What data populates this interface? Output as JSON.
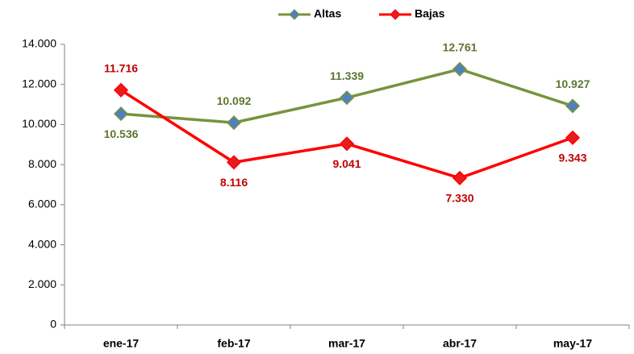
{
  "chart_data": {
    "type": "line",
    "categories": [
      "ene-17",
      "feb-17",
      "mar-17",
      "abr-17",
      "may-17"
    ],
    "series": [
      {
        "name": "Altas",
        "color": "#77933c",
        "marker_color": "#4f81bd",
        "label_color": "#5f7530",
        "values": [
          10536,
          10092,
          11339,
          12761,
          10927
        ],
        "value_labels": [
          "10.536",
          "10.092",
          "11.339",
          "12.761",
          "10.927"
        ]
      },
      {
        "name": "Bajas",
        "color": "#ff0000",
        "marker_color": "#e81c1c",
        "label_color": "#c00000",
        "values": [
          11716,
          8116,
          9041,
          7330,
          9343
        ],
        "value_labels": [
          "11.716",
          "8.116",
          "9.041",
          "7.330",
          "9.343"
        ]
      }
    ],
    "ylim": [
      0,
      14000
    ],
    "yticks": [
      0,
      {
        "value": 2000,
        "label": "2.000"
      },
      {
        "value": 4000,
        "label": "4.000"
      },
      {
        "value": 6000,
        "label": "6.000"
      },
      {
        "value": 8000,
        "label": "8.000"
      },
      {
        "value": 10000,
        "label": "10.000"
      },
      {
        "value": 12000,
        "label": "12.000"
      },
      {
        "value": 14000,
        "label": "14.000"
      }
    ],
    "grid": false,
    "legend": "top"
  }
}
